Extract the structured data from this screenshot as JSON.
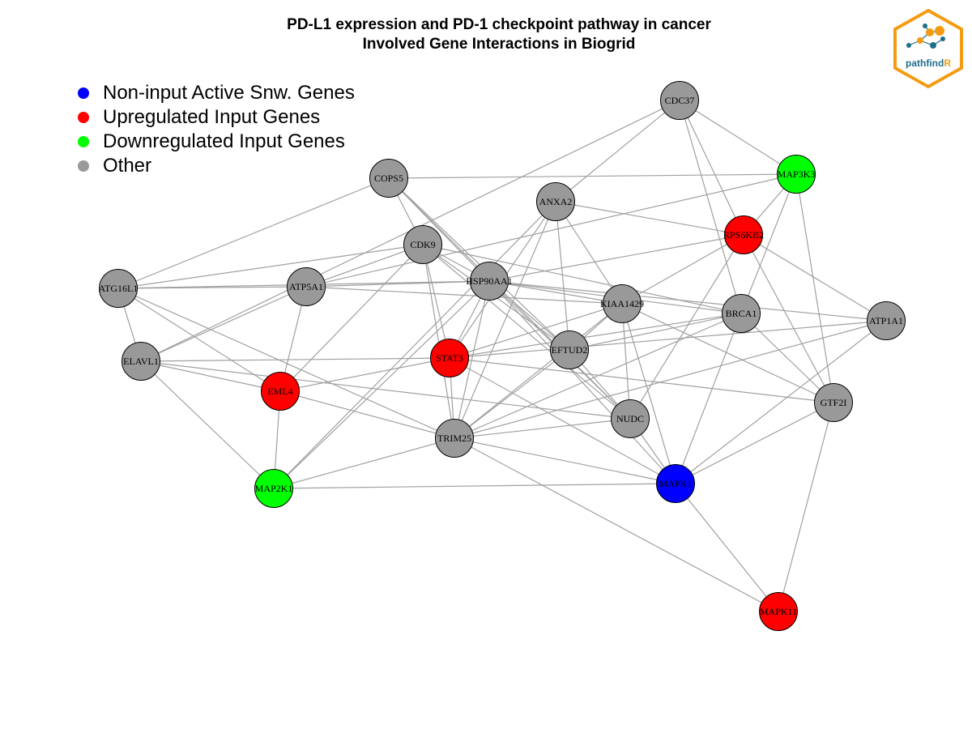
{
  "title": {
    "line1": "PD-L1 expression and PD-1 checkpoint pathway in cancer",
    "line2": "Involved Gene Interactions in Biogrid"
  },
  "legend": [
    {
      "label": "Non-input Active Snw. Genes",
      "color": "#0000ff"
    },
    {
      "label": "Upregulated Input Genes",
      "color": "#ff0000"
    },
    {
      "label": "Downregulated Input Genes",
      "color": "#00ff00"
    },
    {
      "label": "Other",
      "color": "#999999"
    }
  ],
  "logo": {
    "text_main": "pathfind",
    "text_accent": "R",
    "color_main": "#1f6f8b",
    "color_accent": "#f39c12"
  },
  "colors": {
    "edge": "#a0a0a0",
    "node_border": "#000000"
  },
  "graph": {
    "nodes": [
      {
        "id": "CDC37",
        "group": "other"
      },
      {
        "id": "MAP3K3",
        "group": "down"
      },
      {
        "id": "COPS5",
        "group": "other"
      },
      {
        "id": "ANXA2",
        "group": "other"
      },
      {
        "id": "RPS6KB2",
        "group": "up"
      },
      {
        "id": "CDK9",
        "group": "other"
      },
      {
        "id": "ATG16L1",
        "group": "other"
      },
      {
        "id": "ATP5A1",
        "group": "other"
      },
      {
        "id": "HSP90AA1",
        "group": "other"
      },
      {
        "id": "KIAA1429",
        "group": "other"
      },
      {
        "id": "BRCA1",
        "group": "other"
      },
      {
        "id": "ATP1A1",
        "group": "other"
      },
      {
        "id": "ELAVL1",
        "group": "other"
      },
      {
        "id": "STAT3",
        "group": "up"
      },
      {
        "id": "EFTUD2",
        "group": "other"
      },
      {
        "id": "EML4",
        "group": "up"
      },
      {
        "id": "GTF2I",
        "group": "other"
      },
      {
        "id": "NUDC",
        "group": "other"
      },
      {
        "id": "TRIM25",
        "group": "other"
      },
      {
        "id": "MAP2K1",
        "group": "down"
      },
      {
        "id": "MAPK1",
        "group": "active"
      },
      {
        "id": "MAPK11",
        "group": "up"
      }
    ],
    "edges": [
      [
        "CDC37",
        "MAP3K3"
      ],
      [
        "CDC37",
        "ANXA2"
      ],
      [
        "CDC37",
        "ELAVL1"
      ],
      [
        "CDC37",
        "RPS6KB2"
      ],
      [
        "CDC37",
        "BRCA1"
      ],
      [
        "COPS5",
        "MAP3K3"
      ],
      [
        "COPS5",
        "CDK9"
      ],
      [
        "COPS5",
        "HSP90AA1"
      ],
      [
        "COPS5",
        "EFTUD2"
      ],
      [
        "COPS5",
        "NUDC"
      ],
      [
        "COPS5",
        "ATG16L1"
      ],
      [
        "ANXA2",
        "RPS6KB2"
      ],
      [
        "ANXA2",
        "KIAA1429"
      ],
      [
        "ANXA2",
        "EFTUD2"
      ],
      [
        "ANXA2",
        "STAT3"
      ],
      [
        "ANXA2",
        "TRIM25"
      ],
      [
        "ANXA2",
        "MAP2K1"
      ],
      [
        "MAP3K3",
        "RPS6KB2"
      ],
      [
        "MAP3K3",
        "GTF2I"
      ],
      [
        "MAP3K3",
        "BRCA1"
      ],
      [
        "MAP3K3",
        "ATP5A1"
      ],
      [
        "RPS6KB2",
        "HSP90AA1"
      ],
      [
        "RPS6KB2",
        "ATP1A1"
      ],
      [
        "RPS6KB2",
        "GTF2I"
      ],
      [
        "RPS6KB2",
        "NUDC"
      ],
      [
        "RPS6KB2",
        "KIAA1429"
      ],
      [
        "CDK9",
        "ATG16L1"
      ],
      [
        "CDK9",
        "ATP5A1"
      ],
      [
        "CDK9",
        "HSP90AA1"
      ],
      [
        "CDK9",
        "STAT3"
      ],
      [
        "CDK9",
        "EML4"
      ],
      [
        "CDK9",
        "EFTUD2"
      ],
      [
        "CDK9",
        "BRCA1"
      ],
      [
        "CDK9",
        "NUDC"
      ],
      [
        "CDK9",
        "TRIM25"
      ],
      [
        "ATG16L1",
        "ATP5A1"
      ],
      [
        "ATG16L1",
        "HSP90AA1"
      ],
      [
        "ATG16L1",
        "ELAVL1"
      ],
      [
        "ATG16L1",
        "EML4"
      ],
      [
        "ATG16L1",
        "TRIM25"
      ],
      [
        "ATP5A1",
        "HSP90AA1"
      ],
      [
        "ATP5A1",
        "KIAA1429"
      ],
      [
        "ATP5A1",
        "ELAVL1"
      ],
      [
        "ATP5A1",
        "EML4"
      ],
      [
        "HSP90AA1",
        "KIAA1429"
      ],
      [
        "HSP90AA1",
        "BRCA1"
      ],
      [
        "HSP90AA1",
        "EFTUD2"
      ],
      [
        "HSP90AA1",
        "STAT3"
      ],
      [
        "HSP90AA1",
        "TRIM25"
      ],
      [
        "HSP90AA1",
        "NUDC"
      ],
      [
        "HSP90AA1",
        "MAP2K1"
      ],
      [
        "HSP90AA1",
        "ATP1A1"
      ],
      [
        "HSP90AA1",
        "MAPK1"
      ],
      [
        "KIAA1429",
        "STAT3"
      ],
      [
        "KIAA1429",
        "EFTUD2"
      ],
      [
        "KIAA1429",
        "NUDC"
      ],
      [
        "KIAA1429",
        "GTF2I"
      ],
      [
        "KIAA1429",
        "TRIM25"
      ],
      [
        "KIAA1429",
        "MAPK1"
      ],
      [
        "BRCA1",
        "STAT3"
      ],
      [
        "BRCA1",
        "EFTUD2"
      ],
      [
        "BRCA1",
        "TRIM25"
      ],
      [
        "BRCA1",
        "GTF2I"
      ],
      [
        "BRCA1",
        "MAPK1"
      ],
      [
        "ATP1A1",
        "STAT3"
      ],
      [
        "ATP1A1",
        "TRIM25"
      ],
      [
        "ATP1A1",
        "MAPK1"
      ],
      [
        "ELAVL1",
        "STAT3"
      ],
      [
        "ELAVL1",
        "EML4"
      ],
      [
        "ELAVL1",
        "MAP2K1"
      ],
      [
        "ELAVL1",
        "NUDC"
      ],
      [
        "STAT3",
        "EML4"
      ],
      [
        "STAT3",
        "TRIM25"
      ],
      [
        "STAT3",
        "GTF2I"
      ],
      [
        "STAT3",
        "MAPK1"
      ],
      [
        "EFTUD2",
        "TRIM25"
      ],
      [
        "EFTUD2",
        "NUDC"
      ],
      [
        "EML4",
        "MAP2K1"
      ],
      [
        "EML4",
        "TRIM25"
      ],
      [
        "GTF2I",
        "MAPK1"
      ],
      [
        "GTF2I",
        "MAPK11"
      ],
      [
        "NUDC",
        "TRIM25"
      ],
      [
        "NUDC",
        "MAPK1"
      ],
      [
        "TRIM25",
        "MAP2K1"
      ],
      [
        "TRIM25",
        "MAPK1"
      ],
      [
        "TRIM25",
        "MAPK11"
      ],
      [
        "MAP2K1",
        "MAPK1"
      ],
      [
        "MAPK1",
        "MAPK11"
      ]
    ]
  }
}
